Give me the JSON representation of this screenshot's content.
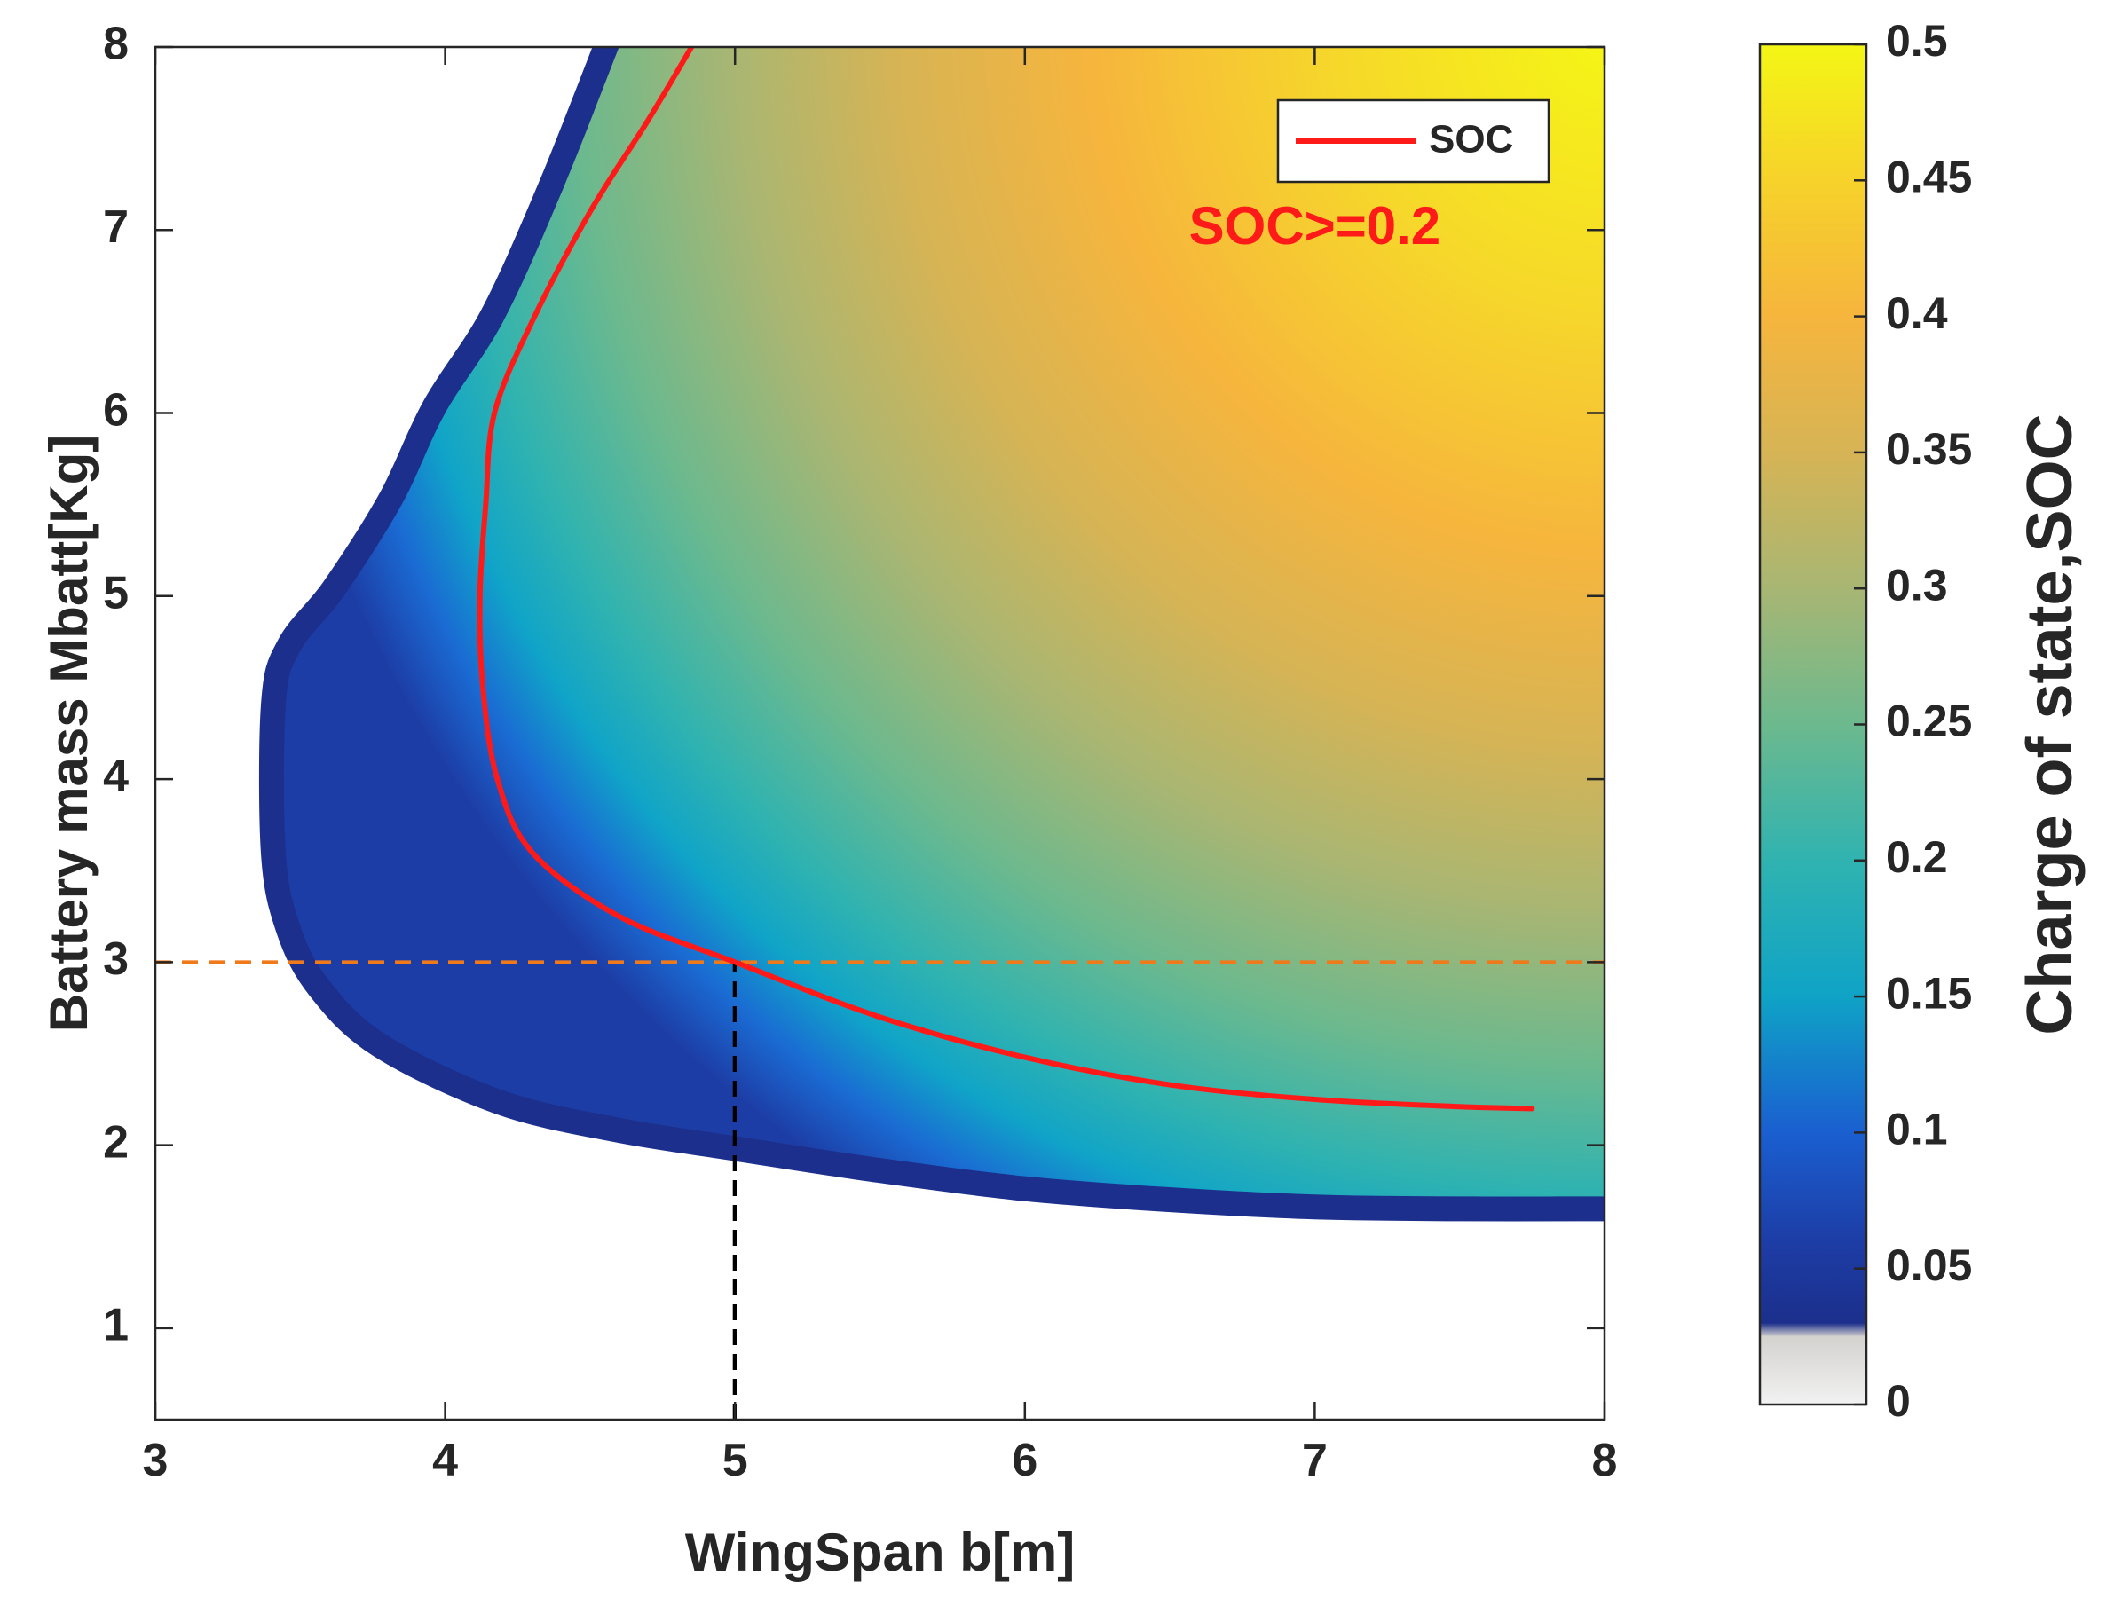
{
  "chart_data": {
    "type": "heatmap",
    "xlabel": "WingSpan b[m]",
    "ylabel": "Battery mass Mbatt[Kg]",
    "xlim": [
      3,
      8
    ],
    "ylim": [
      0.5,
      8
    ],
    "x_ticks": [
      {
        "value": 3,
        "label": "3"
      },
      {
        "value": 4,
        "label": "4"
      },
      {
        "value": 5,
        "label": "5"
      },
      {
        "value": 6,
        "label": "6"
      },
      {
        "value": 7,
        "label": "7"
      },
      {
        "value": 8,
        "label": "8"
      }
    ],
    "y_ticks": [
      {
        "value": 1,
        "label": "1"
      },
      {
        "value": 2,
        "label": "2"
      },
      {
        "value": 3,
        "label": "3"
      },
      {
        "value": 4,
        "label": "4"
      },
      {
        "value": 5,
        "label": "5"
      },
      {
        "value": 6,
        "label": "6"
      },
      {
        "value": 7,
        "label": "7"
      },
      {
        "value": 8,
        "label": "8"
      }
    ],
    "colorbar": {
      "label": "Charge of state,SOC",
      "range": [
        0,
        0.5
      ],
      "ticks": [
        {
          "value": 0,
          "label": "0"
        },
        {
          "value": 0.05,
          "label": "0.05"
        },
        {
          "value": 0.1,
          "label": "0.1"
        },
        {
          "value": 0.15,
          "label": "0.15"
        },
        {
          "value": 0.2,
          "label": "0.2"
        },
        {
          "value": 0.25,
          "label": "0.25"
        },
        {
          "value": 0.3,
          "label": "0.3"
        },
        {
          "value": 0.35,
          "label": "0.35"
        },
        {
          "value": 0.4,
          "label": "0.4"
        },
        {
          "value": 0.45,
          "label": "0.45"
        },
        {
          "value": 0.5,
          "label": "0.5"
        }
      ],
      "colors": [
        {
          "value": 0.0,
          "color": "#f2f2f2"
        },
        {
          "value": 0.025,
          "color": "#d4d2cf"
        },
        {
          "value": 0.03,
          "color": "#1c2f8c"
        },
        {
          "value": 0.06,
          "color": "#1d3da6"
        },
        {
          "value": 0.1,
          "color": "#1a5fd0"
        },
        {
          "value": 0.15,
          "color": "#0fa3c6"
        },
        {
          "value": 0.2,
          "color": "#30b3b0"
        },
        {
          "value": 0.25,
          "color": "#6cb98e"
        },
        {
          "value": 0.3,
          "color": "#a8b673"
        },
        {
          "value": 0.35,
          "color": "#d6b455"
        },
        {
          "value": 0.4,
          "color": "#f6b53d"
        },
        {
          "value": 0.45,
          "color": "#f6d22a"
        },
        {
          "value": 0.5,
          "color": "#f4f615"
        }
      ]
    },
    "feasible_boundary": {
      "x": [
        4.6,
        4.4,
        4.2,
        4.0,
        3.85,
        3.65,
        3.5,
        3.45,
        3.45,
        3.5,
        3.6,
        3.8,
        4.2,
        4.6,
        5.0,
        5.5,
        6.0,
        6.5,
        7.0,
        7.5,
        8.0
      ],
      "y": [
        8.0,
        7.2,
        6.5,
        6.0,
        5.5,
        5.0,
        4.7,
        4.4,
        3.6,
        3.2,
        2.9,
        2.6,
        2.3,
        2.15,
        2.05,
        1.93,
        1.83,
        1.77,
        1.73,
        1.72,
        1.72
      ]
    },
    "series": [
      {
        "name": "SOC",
        "color": "#ff1a1a",
        "x": [
          4.85,
          4.7,
          4.5,
          4.3,
          4.17,
          4.14,
          4.12,
          4.13,
          4.18,
          4.3,
          4.6,
          5.0,
          5.5,
          6.0,
          6.5,
          7.0,
          7.5,
          7.75
        ],
        "y": [
          8.0,
          7.6,
          7.1,
          6.5,
          6.0,
          5.5,
          5.0,
          4.5,
          4.0,
          3.6,
          3.25,
          3.0,
          2.7,
          2.48,
          2.33,
          2.25,
          2.21,
          2.2
        ]
      }
    ],
    "reference_lines": [
      {
        "orientation": "horizontal",
        "value": 3,
        "color": "#f07a1a",
        "style": "dashed"
      },
      {
        "orientation": "vertical",
        "value": 5,
        "from": 0.5,
        "to": 3,
        "color": "#000000",
        "style": "dashed"
      }
    ],
    "annotations": [
      {
        "text": "SOC>=0.2",
        "color": "#ff1a1a",
        "x": 7.0,
        "y": 7.0
      }
    ],
    "legend": {
      "position": "top-right",
      "entries": [
        {
          "label": "SOC",
          "color": "#ff1a1a"
        }
      ]
    }
  }
}
